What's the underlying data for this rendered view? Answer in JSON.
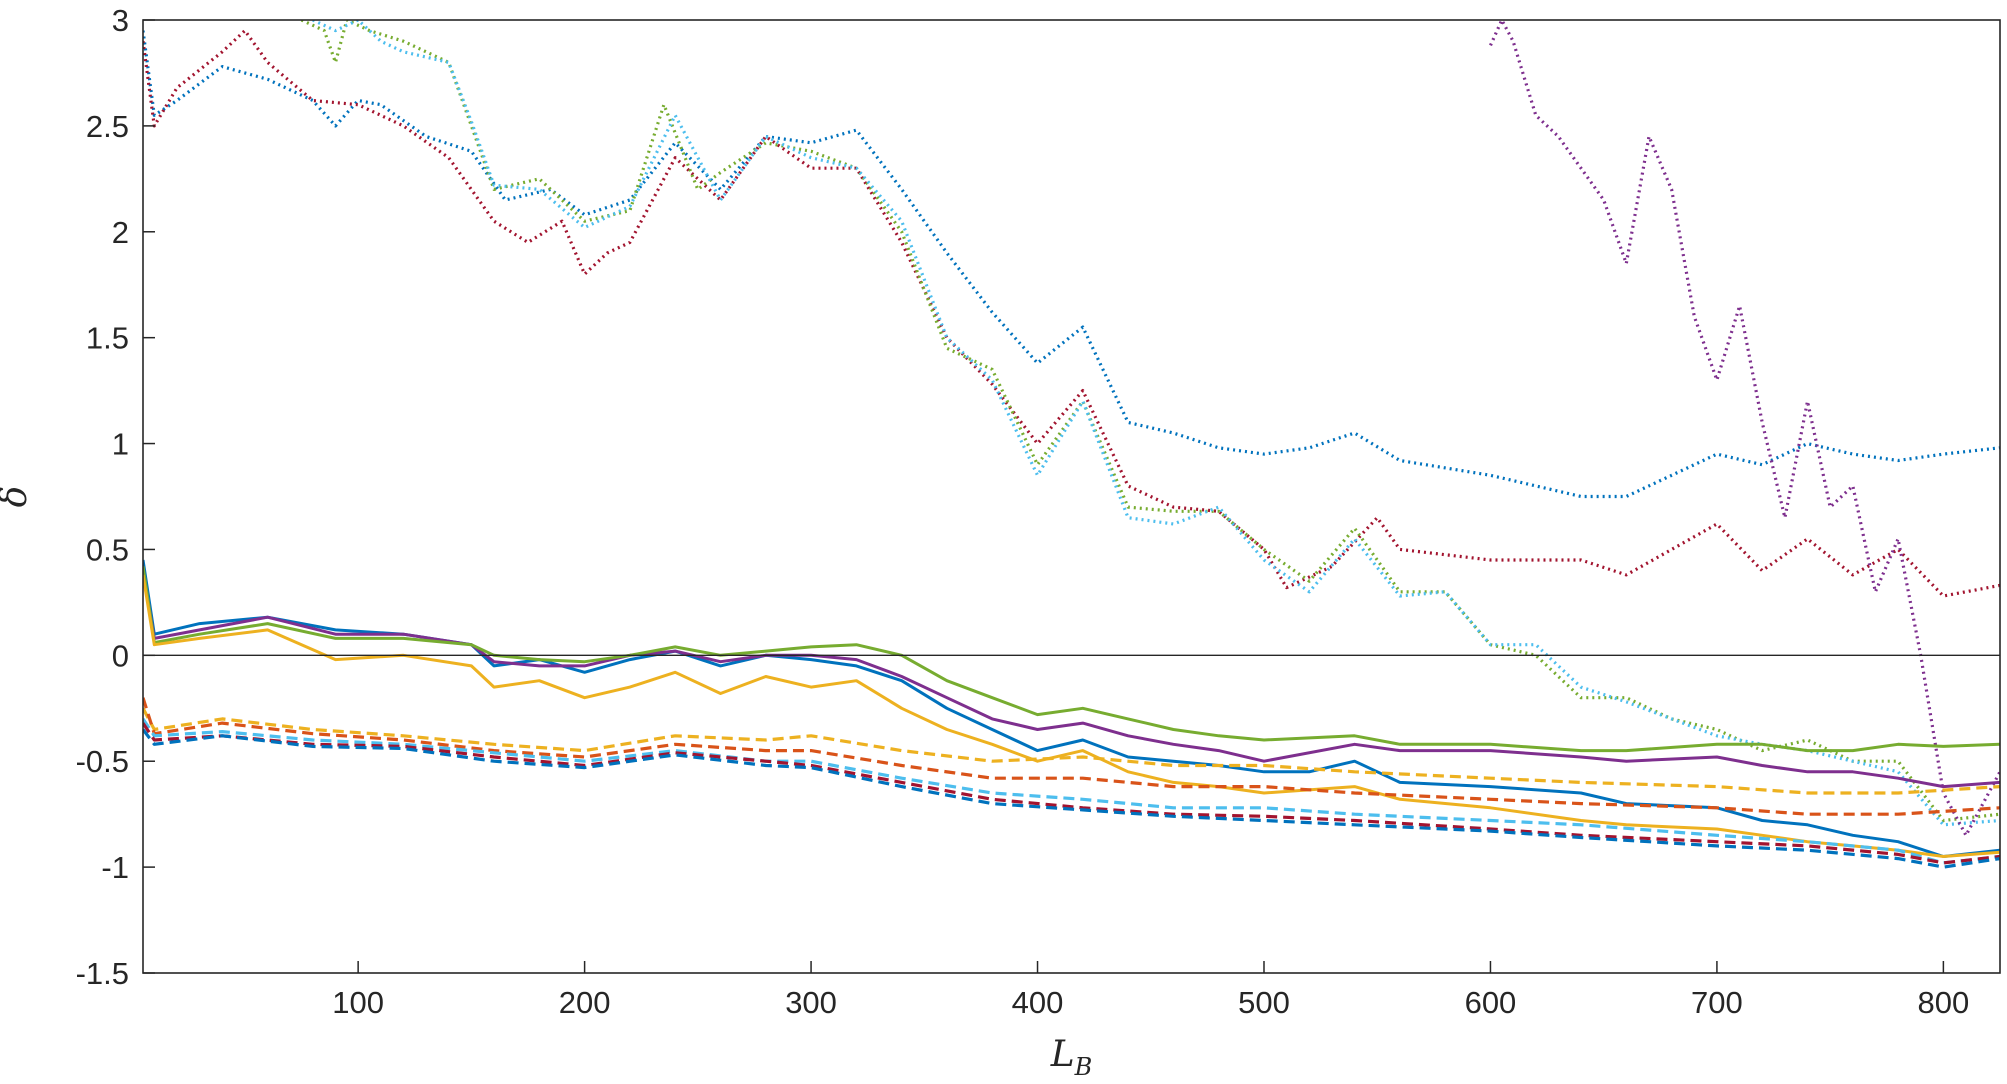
{
  "chart_data": {
    "type": "line",
    "title": "",
    "xlabel": "L",
    "xlabel_subscript": "B",
    "ylabel": "δ",
    "xlim": [
      5,
      825
    ],
    "ylim": [
      -1.5,
      3
    ],
    "xticks": [
      "100",
      "200",
      "300",
      "400",
      "500",
      "600",
      "700",
      "800"
    ],
    "yticks": [
      "3",
      "2.5",
      "2",
      "1.5",
      "1",
      "0.5",
      "0",
      "-0.5",
      "-1",
      "-1.5"
    ],
    "grid": false,
    "legend": "none",
    "reference_line_y": 0,
    "series": [
      {
        "color": "#0072BD",
        "style": "dotted",
        "x": [
          5,
          10,
          20,
          40,
          60,
          80,
          90,
          100,
          110,
          130,
          150,
          165,
          185,
          200,
          220,
          240,
          260,
          280,
          300,
          320,
          340,
          360,
          380,
          400,
          420,
          440,
          460,
          480,
          500,
          520,
          540,
          560,
          600,
          640,
          660,
          700,
          720,
          740,
          760,
          780,
          800,
          825
        ],
        "y": [
          2.95,
          2.55,
          2.62,
          2.78,
          2.72,
          2.62,
          2.5,
          2.62,
          2.6,
          2.45,
          2.38,
          2.15,
          2.2,
          2.08,
          2.15,
          2.42,
          2.2,
          2.45,
          2.42,
          2.48,
          2.2,
          1.9,
          1.62,
          1.38,
          1.55,
          1.1,
          1.05,
          0.98,
          0.95,
          0.98,
          1.05,
          0.92,
          0.85,
          0.75,
          0.75,
          0.95,
          0.9,
          1.0,
          0.95,
          0.92,
          0.95,
          0.98
        ]
      },
      {
        "color": "#A2142F",
        "style": "dotted",
        "x": [
          5,
          10,
          20,
          40,
          50,
          60,
          80,
          100,
          120,
          140,
          160,
          175,
          190,
          200,
          210,
          220,
          240,
          260,
          280,
          300,
          320,
          340,
          360,
          380,
          400,
          420,
          440,
          460,
          480,
          500,
          510,
          530,
          550,
          560,
          600,
          640,
          660,
          700,
          720,
          740,
          760,
          780,
          800,
          825
        ],
        "y": [
          2.9,
          2.5,
          2.68,
          2.85,
          2.95,
          2.8,
          2.62,
          2.6,
          2.5,
          2.35,
          2.05,
          1.95,
          2.05,
          1.8,
          1.9,
          1.95,
          2.35,
          2.15,
          2.45,
          2.3,
          2.3,
          1.95,
          1.5,
          1.28,
          1.0,
          1.25,
          0.8,
          0.7,
          0.68,
          0.5,
          0.32,
          0.42,
          0.65,
          0.5,
          0.45,
          0.45,
          0.38,
          0.62,
          0.4,
          0.55,
          0.38,
          0.5,
          0.28,
          0.33
        ]
      },
      {
        "color": "#77AC30",
        "style": "dotted",
        "x": [
          75,
          85,
          90,
          95,
          105,
          120,
          140,
          150,
          160,
          180,
          200,
          220,
          235,
          250,
          260,
          280,
          300,
          320,
          340,
          360,
          380,
          400,
          420,
          440,
          460,
          480,
          500,
          520,
          540,
          560,
          580,
          600,
          620,
          640,
          660,
          680,
          700,
          720,
          740,
          760,
          780,
          800,
          825
        ],
        "y": [
          3.0,
          2.95,
          2.8,
          3.0,
          2.95,
          2.9,
          2.8,
          2.5,
          2.2,
          2.25,
          2.05,
          2.1,
          2.6,
          2.2,
          2.28,
          2.42,
          2.38,
          2.3,
          2.0,
          1.45,
          1.35,
          0.9,
          1.2,
          0.7,
          0.68,
          0.68,
          0.5,
          0.35,
          0.6,
          0.3,
          0.3,
          0.05,
          0.0,
          -0.2,
          -0.2,
          -0.3,
          -0.35,
          -0.45,
          -0.4,
          -0.5,
          -0.5,
          -0.78,
          -0.75
        ]
      },
      {
        "color": "#4DBEEE",
        "style": "dotted",
        "x": [
          80,
          90,
          100,
          110,
          120,
          140,
          150,
          160,
          180,
          200,
          220,
          240,
          260,
          280,
          300,
          320,
          340,
          360,
          380,
          400,
          420,
          440,
          460,
          480,
          500,
          520,
          540,
          560,
          580,
          600,
          620,
          640,
          660,
          680,
          700,
          720,
          740,
          760,
          780,
          800,
          825
        ],
        "y": [
          3.0,
          2.95,
          3.0,
          2.9,
          2.85,
          2.8,
          2.52,
          2.22,
          2.2,
          2.02,
          2.12,
          2.55,
          2.15,
          2.45,
          2.35,
          2.3,
          2.05,
          1.5,
          1.3,
          0.85,
          1.2,
          0.65,
          0.62,
          0.7,
          0.45,
          0.3,
          0.55,
          0.28,
          0.3,
          0.05,
          0.05,
          -0.15,
          -0.22,
          -0.3,
          -0.38,
          -0.42,
          -0.45,
          -0.5,
          -0.55,
          -0.8,
          -0.78
        ]
      },
      {
        "color": "#7E2F8E",
        "style": "dotted",
        "x": [
          600,
          605,
          610,
          620,
          630,
          640,
          650,
          660,
          670,
          680,
          690,
          700,
          710,
          720,
          730,
          740,
          750,
          760,
          770,
          780,
          790,
          800,
          810,
          825
        ],
        "y": [
          2.88,
          3.0,
          2.9,
          2.55,
          2.45,
          2.3,
          2.15,
          1.85,
          2.45,
          2.2,
          1.6,
          1.3,
          1.65,
          1.1,
          0.65,
          1.2,
          0.7,
          0.8,
          0.3,
          0.55,
          0.0,
          -0.65,
          -0.85,
          -0.55
        ]
      },
      {
        "color": "#0072BD",
        "style": "solid",
        "x": [
          5,
          10,
          30,
          60,
          90,
          120,
          150,
          160,
          180,
          200,
          220,
          240,
          260,
          280,
          300,
          320,
          340,
          360,
          380,
          400,
          420,
          440,
          460,
          480,
          500,
          520,
          540,
          560,
          600,
          640,
          660,
          700,
          720,
          740,
          760,
          780,
          800,
          825
        ],
        "y": [
          0.45,
          0.1,
          0.15,
          0.18,
          0.12,
          0.1,
          0.05,
          -0.05,
          -0.02,
          -0.08,
          -0.02,
          0.02,
          -0.05,
          0.0,
          -0.02,
          -0.05,
          -0.12,
          -0.25,
          -0.35,
          -0.45,
          -0.4,
          -0.48,
          -0.5,
          -0.52,
          -0.55,
          -0.55,
          -0.5,
          -0.6,
          -0.62,
          -0.65,
          -0.7,
          -0.72,
          -0.78,
          -0.8,
          -0.85,
          -0.88,
          -0.95,
          -0.92
        ]
      },
      {
        "color": "#7E2F8E",
        "style": "solid",
        "x": [
          5,
          10,
          30,
          60,
          90,
          120,
          150,
          160,
          180,
          200,
          220,
          240,
          260,
          280,
          300,
          320,
          340,
          360,
          380,
          400,
          420,
          440,
          460,
          480,
          500,
          540,
          560,
          600,
          640,
          660,
          700,
          720,
          740,
          760,
          780,
          800,
          825
        ],
        "y": [
          0.4,
          0.08,
          0.12,
          0.18,
          0.1,
          0.1,
          0.05,
          -0.03,
          -0.05,
          -0.05,
          0.0,
          0.02,
          -0.03,
          0.0,
          0.0,
          -0.02,
          -0.1,
          -0.2,
          -0.3,
          -0.35,
          -0.32,
          -0.38,
          -0.42,
          -0.45,
          -0.5,
          -0.42,
          -0.45,
          -0.45,
          -0.48,
          -0.5,
          -0.48,
          -0.52,
          -0.55,
          -0.55,
          -0.58,
          -0.62,
          -0.6
        ]
      },
      {
        "color": "#77AC30",
        "style": "solid",
        "x": [
          5,
          10,
          30,
          60,
          90,
          120,
          150,
          160,
          180,
          200,
          220,
          240,
          260,
          280,
          300,
          320,
          340,
          360,
          380,
          400,
          420,
          440,
          460,
          480,
          500,
          540,
          560,
          600,
          640,
          660,
          700,
          720,
          740,
          760,
          780,
          800,
          825
        ],
        "y": [
          0.42,
          0.06,
          0.1,
          0.15,
          0.08,
          0.08,
          0.05,
          0.0,
          -0.02,
          -0.03,
          0.0,
          0.04,
          0.0,
          0.02,
          0.04,
          0.05,
          0.0,
          -0.12,
          -0.2,
          -0.28,
          -0.25,
          -0.3,
          -0.35,
          -0.38,
          -0.4,
          -0.38,
          -0.42,
          -0.42,
          -0.45,
          -0.45,
          -0.42,
          -0.42,
          -0.45,
          -0.45,
          -0.42,
          -0.43,
          -0.42
        ]
      },
      {
        "color": "#EDB120",
        "style": "solid",
        "x": [
          5,
          10,
          30,
          60,
          90,
          120,
          150,
          160,
          180,
          200,
          220,
          240,
          260,
          280,
          300,
          320,
          340,
          360,
          380,
          400,
          420,
          440,
          460,
          480,
          500,
          540,
          560,
          600,
          640,
          660,
          700,
          720,
          740,
          760,
          780,
          800,
          825
        ],
        "y": [
          0.38,
          0.05,
          0.08,
          0.12,
          -0.02,
          0.0,
          -0.05,
          -0.15,
          -0.12,
          -0.2,
          -0.15,
          -0.08,
          -0.18,
          -0.1,
          -0.15,
          -0.12,
          -0.25,
          -0.35,
          -0.42,
          -0.5,
          -0.45,
          -0.55,
          -0.6,
          -0.62,
          -0.65,
          -0.62,
          -0.68,
          -0.72,
          -0.78,
          -0.8,
          -0.82,
          -0.85,
          -0.88,
          -0.9,
          -0.92,
          -0.95,
          -0.93
        ]
      },
      {
        "color": "#EDB120",
        "style": "dashed",
        "x": [
          5,
          10,
          40,
          80,
          120,
          160,
          200,
          240,
          280,
          300,
          340,
          380,
          420,
          460,
          500,
          540,
          600,
          640,
          700,
          740,
          780,
          825
        ],
        "y": [
          -0.25,
          -0.35,
          -0.3,
          -0.35,
          -0.38,
          -0.42,
          -0.45,
          -0.38,
          -0.4,
          -0.38,
          -0.45,
          -0.5,
          -0.48,
          -0.52,
          -0.52,
          -0.55,
          -0.58,
          -0.6,
          -0.62,
          -0.65,
          -0.65,
          -0.62
        ]
      },
      {
        "color": "#D95319",
        "style": "dashed",
        "x": [
          5,
          10,
          40,
          80,
          120,
          160,
          200,
          240,
          280,
          300,
          340,
          380,
          420,
          460,
          500,
          540,
          600,
          640,
          700,
          740,
          780,
          825
        ],
        "y": [
          -0.2,
          -0.37,
          -0.32,
          -0.37,
          -0.4,
          -0.45,
          -0.48,
          -0.42,
          -0.45,
          -0.45,
          -0.52,
          -0.58,
          -0.58,
          -0.62,
          -0.62,
          -0.65,
          -0.68,
          -0.7,
          -0.72,
          -0.75,
          -0.75,
          -0.72
        ]
      },
      {
        "color": "#4DBEEE",
        "style": "dashed",
        "x": [
          5,
          10,
          40,
          80,
          120,
          160,
          200,
          240,
          280,
          300,
          340,
          380,
          420,
          460,
          500,
          540,
          600,
          640,
          700,
          740,
          780,
          800,
          825
        ],
        "y": [
          -0.3,
          -0.38,
          -0.36,
          -0.4,
          -0.42,
          -0.46,
          -0.5,
          -0.45,
          -0.5,
          -0.5,
          -0.58,
          -0.65,
          -0.68,
          -0.72,
          -0.72,
          -0.75,
          -0.78,
          -0.8,
          -0.85,
          -0.88,
          -0.92,
          -0.98,
          -0.95
        ]
      },
      {
        "color": "#A2142F",
        "style": "dashed",
        "x": [
          5,
          10,
          40,
          80,
          120,
          160,
          200,
          240,
          280,
          300,
          340,
          380,
          420,
          460,
          500,
          540,
          600,
          640,
          700,
          740,
          780,
          800,
          825
        ],
        "y": [
          -0.32,
          -0.4,
          -0.38,
          -0.42,
          -0.43,
          -0.48,
          -0.52,
          -0.46,
          -0.5,
          -0.52,
          -0.6,
          -0.68,
          -0.72,
          -0.75,
          -0.76,
          -0.78,
          -0.82,
          -0.85,
          -0.88,
          -0.9,
          -0.94,
          -0.98,
          -0.95
        ]
      },
      {
        "color": "#0072BD",
        "style": "dashed",
        "x": [
          5,
          10,
          40,
          80,
          120,
          160,
          200,
          240,
          280,
          300,
          340,
          380,
          420,
          460,
          500,
          540,
          600,
          640,
          700,
          740,
          780,
          800,
          825
        ],
        "y": [
          -0.35,
          -0.42,
          -0.38,
          -0.43,
          -0.44,
          -0.5,
          -0.53,
          -0.47,
          -0.52,
          -0.53,
          -0.62,
          -0.7,
          -0.73,
          -0.76,
          -0.78,
          -0.8,
          -0.83,
          -0.86,
          -0.9,
          -0.92,
          -0.96,
          -1.0,
          -0.96
        ]
      }
    ]
  }
}
